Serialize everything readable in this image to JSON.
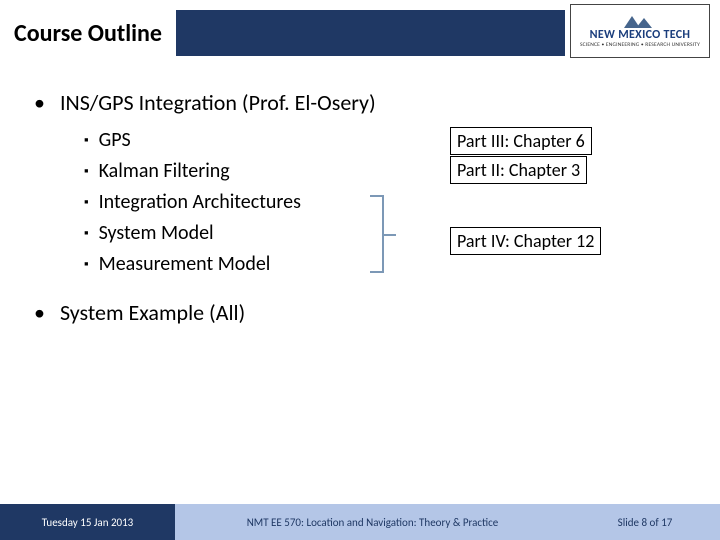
{
  "header": {
    "title": "Course Outline"
  },
  "logo": {
    "line1": "NEW MEXICO TECH",
    "tagline": "SCIENCE • ENGINEERING • RESEARCH UNIVERSITY"
  },
  "topics": {
    "main1": "INS/GPS Integration (Prof. El-Osery)",
    "subs": [
      "GPS",
      "Kalman Filtering",
      "Integration Architectures",
      "System Model",
      "Measurement Model"
    ],
    "main2": "System Example (All)"
  },
  "refs": {
    "r1": "Part III: Chapter 6",
    "r2": "Part II: Chapter 3",
    "r3": "Part IV: Chapter 12"
  },
  "footer": {
    "date": "Tuesday 15 Jan 2013",
    "course": "NMT EE 570: Location and Navigation: Theory & Practice",
    "page": "Slide 8 of 17"
  },
  "colors": {
    "header_bar": "#1f3864",
    "footer_mid": "#b4c6e7",
    "bracket": "#7c98b6"
  }
}
